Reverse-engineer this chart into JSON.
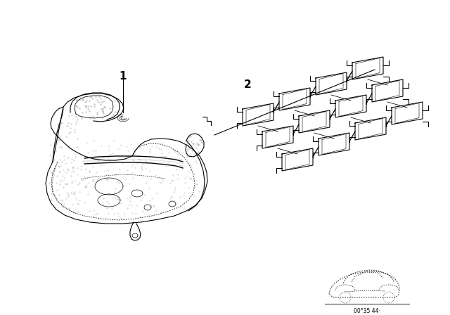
{
  "background_color": "#ffffff",
  "part1_label": "1",
  "part2_label": "2",
  "car_code": "00°35 44·",
  "line_color": "#000000",
  "fig_width": 6.4,
  "fig_height": 4.48,
  "dpi": 100,
  "seat_color": "#1a1a1a",
  "spring_color": "#1a1a1a"
}
